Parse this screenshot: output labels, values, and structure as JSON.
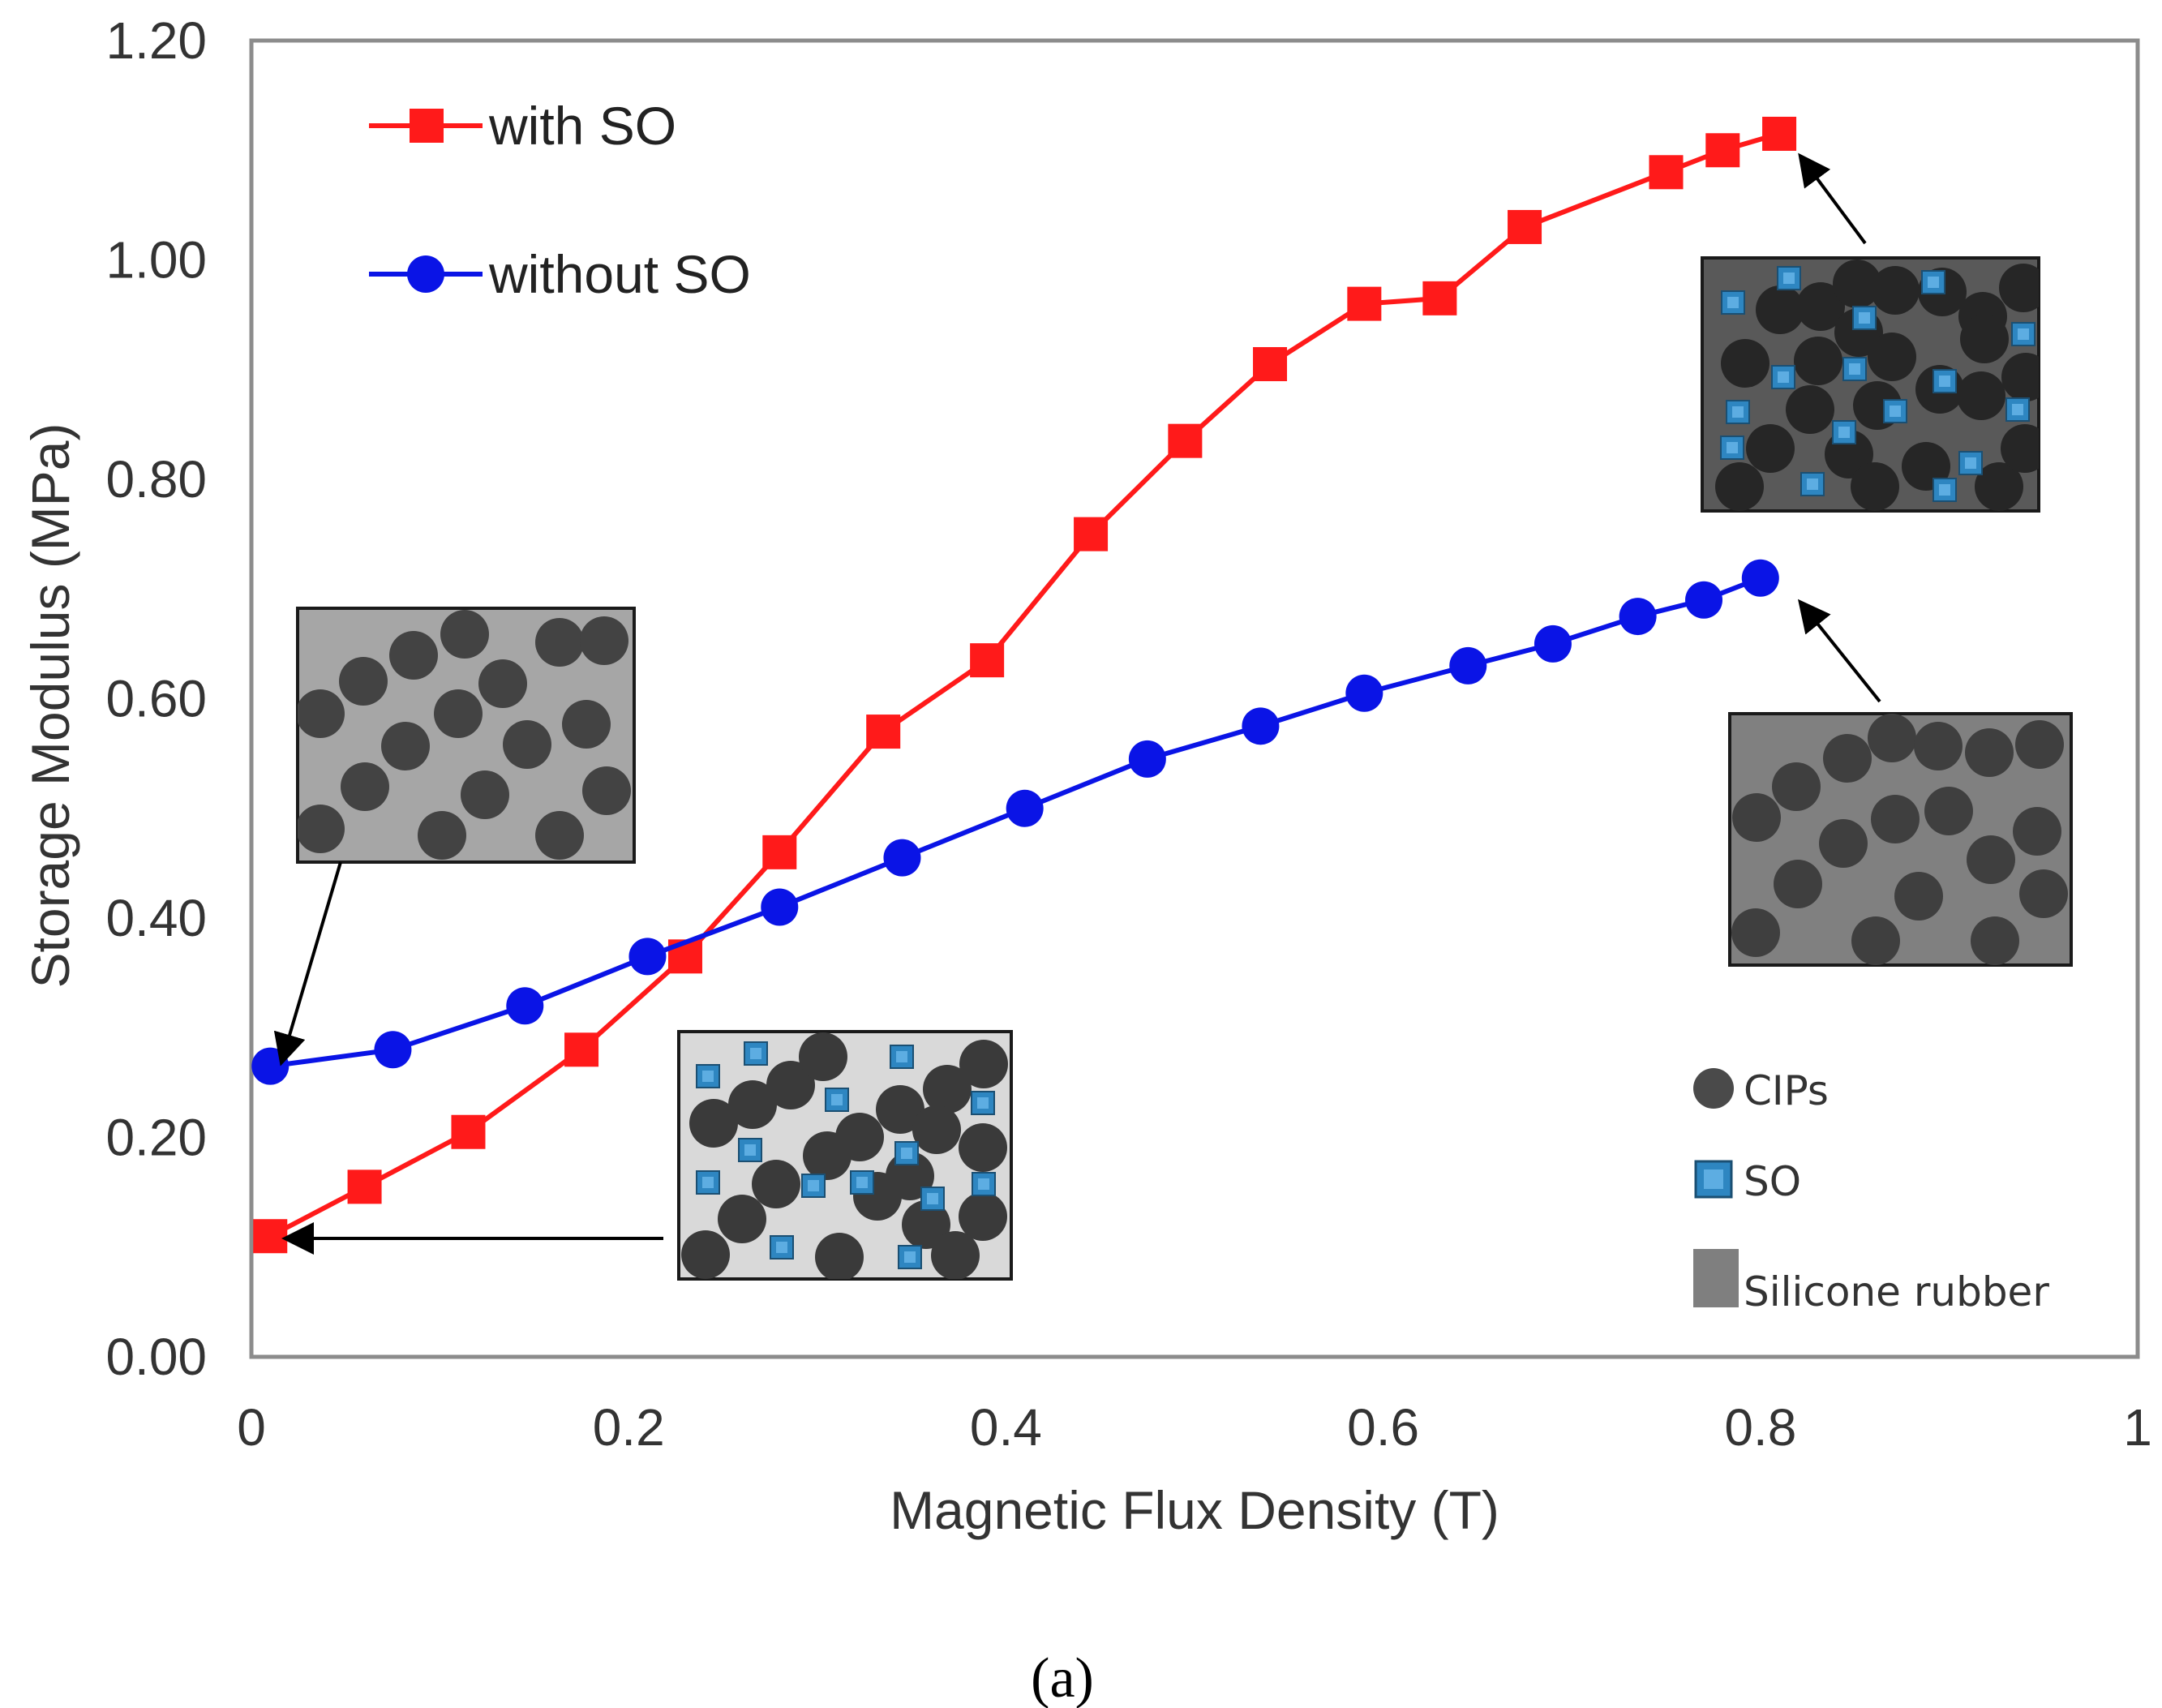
{
  "chart_data": {
    "type": "line",
    "title": "",
    "xlabel": "Magnetic Flux Density (T)",
    "ylabel": "Storage Modulus (MPa)",
    "xlim": [
      0,
      1
    ],
    "ylim": [
      0,
      1.2
    ],
    "x_ticks": [
      "0",
      "0.2",
      "0.4",
      "0.6",
      "0.8",
      "1"
    ],
    "y_ticks": [
      "0.00",
      "0.20",
      "0.40",
      "0.60",
      "0.80",
      "1.00",
      "1.20"
    ],
    "grid": false,
    "legend_position": "top-left",
    "series": [
      {
        "name": "with SO",
        "color": "#ff1a1a",
        "marker": "square",
        "x": [
          0.01,
          0.06,
          0.115,
          0.175,
          0.23,
          0.28,
          0.335,
          0.39,
          0.445,
          0.495,
          0.54,
          0.59,
          0.63,
          0.675,
          0.75,
          0.78,
          0.81
        ],
        "y": [
          0.11,
          0.155,
          0.205,
          0.28,
          0.365,
          0.46,
          0.57,
          0.635,
          0.75,
          0.835,
          0.905,
          0.96,
          0.965,
          1.03,
          1.08,
          1.1,
          1.115
        ]
      },
      {
        "name": "without SO",
        "color": "#0a14e6",
        "marker": "circle",
        "x": [
          0.01,
          0.075,
          0.145,
          0.21,
          0.28,
          0.345,
          0.41,
          0.475,
          0.535,
          0.59,
          0.645,
          0.69,
          0.735,
          0.77,
          0.8
        ],
        "y": [
          0.265,
          0.28,
          0.32,
          0.365,
          0.41,
          0.455,
          0.5,
          0.545,
          0.575,
          0.605,
          0.63,
          0.65,
          0.675,
          0.69,
          0.71
        ]
      }
    ],
    "annotations": {
      "key": [
        {
          "name": "CIPs",
          "color": "#4a4a4a",
          "shape": "circle"
        },
        {
          "name": "SO",
          "color": "#2e86c1",
          "shape": "square"
        },
        {
          "name": "Silicone rubber",
          "color": "#7f7f7f",
          "shape": "rect"
        }
      ]
    },
    "panel_label": "(a)"
  }
}
